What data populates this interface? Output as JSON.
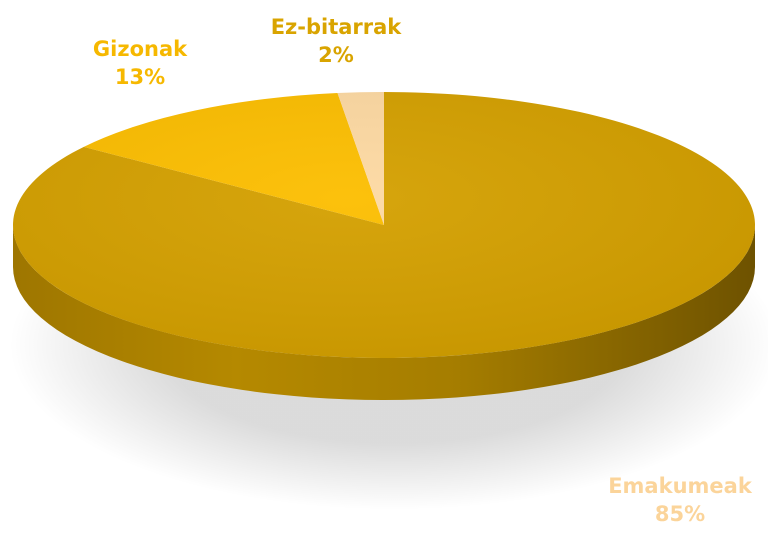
{
  "chart_data": {
    "type": "pie",
    "title": "",
    "slices": [
      {
        "label": "Emakumeak",
        "value": 85,
        "value_label": "85%",
        "color": "#D4A000",
        "label_color": "#FBD49A"
      },
      {
        "label": "Gizonak",
        "value": 13,
        "value_label": "13%",
        "color": "#FCBE00",
        "label_color": "#F6B800"
      },
      {
        "label": "Ez-bitarrak",
        "value": 2,
        "value_label": "2%",
        "color": "#FDD9A2",
        "label_color": "#D9A400"
      }
    ],
    "start_angle": "12 o'clock",
    "direction": "clockwise",
    "style": "3d",
    "legend": "none"
  }
}
